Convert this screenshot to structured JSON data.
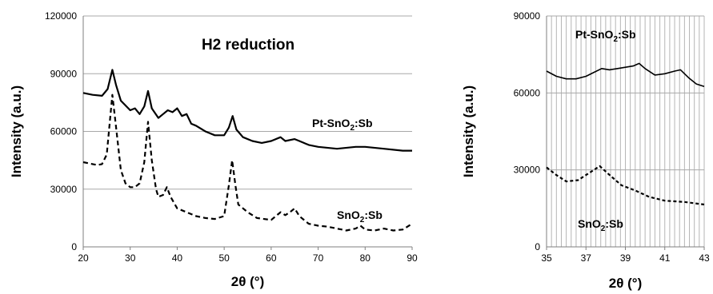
{
  "chart_data": [
    {
      "type": "line",
      "title": "H2 reduction",
      "xlabel": "2θ (°)",
      "ylabel": "Intensity (a.u.)",
      "xlim": [
        20,
        90
      ],
      "ylim": [
        0,
        120000
      ],
      "xticks": [
        "20",
        "30",
        "40",
        "50",
        "60",
        "70",
        "80",
        "90"
      ],
      "yticks": [
        "0",
        "30000",
        "60000",
        "90000",
        "120000"
      ],
      "grid": "horizontal",
      "annotations": [
        {
          "text": "Pt-SnO",
          "sub": "2",
          "rest": ":Sb"
        },
        {
          "text": "SnO",
          "sub": "2",
          "rest": ":Sb"
        }
      ],
      "series": [
        {
          "style": "solid",
          "points": [
            [
              20,
              80000
            ],
            [
              22,
              79000
            ],
            [
              24,
              78500
            ],
            [
              25.2,
              82000
            ],
            [
              26.2,
              92000
            ],
            [
              27,
              84000
            ],
            [
              28,
              76000
            ],
            [
              30,
              71000
            ],
            [
              31,
              72000
            ],
            [
              32,
              69000
            ],
            [
              33,
              73000
            ],
            [
              33.8,
              81000
            ],
            [
              34.6,
              72000
            ],
            [
              36,
              67000
            ],
            [
              37,
              69000
            ],
            [
              38,
              71000
            ],
            [
              39,
              70000
            ],
            [
              40,
              72000
            ],
            [
              41,
              68000
            ],
            [
              42,
              69000
            ],
            [
              43,
              64000
            ],
            [
              44,
              63000
            ],
            [
              46,
              60000
            ],
            [
              48,
              58000
            ],
            [
              50,
              58000
            ],
            [
              51,
              62000
            ],
            [
              51.8,
              68000
            ],
            [
              52.6,
              61000
            ],
            [
              54,
              57000
            ],
            [
              56,
              55000
            ],
            [
              58,
              54000
            ],
            [
              60,
              55000
            ],
            [
              62,
              57000
            ],
            [
              63,
              55000
            ],
            [
              65,
              56000
            ],
            [
              66,
              55000
            ],
            [
              68,
              53000
            ],
            [
              70,
              52000
            ],
            [
              74,
              51000
            ],
            [
              78,
              52000
            ],
            [
              80,
              52000
            ],
            [
              84,
              51000
            ],
            [
              88,
              50000
            ],
            [
              90,
              50000
            ]
          ]
        },
        {
          "style": "dashed",
          "points": [
            [
              20,
              44000
            ],
            [
              22,
              43000
            ],
            [
              23,
              42500
            ],
            [
              24,
              43000
            ],
            [
              25,
              48000
            ],
            [
              26.2,
              79000
            ],
            [
              27,
              62000
            ],
            [
              28,
              40000
            ],
            [
              29,
              33000
            ],
            [
              30,
              31000
            ],
            [
              31,
              31000
            ],
            [
              32,
              33000
            ],
            [
              33,
              44000
            ],
            [
              33.8,
              65000
            ],
            [
              34.6,
              45000
            ],
            [
              35.5,
              30000
            ],
            [
              36,
              26000
            ],
            [
              37,
              27000
            ],
            [
              37.8,
              31000
            ],
            [
              38.6,
              26000
            ],
            [
              40,
              20000
            ],
            [
              42,
              18000
            ],
            [
              44,
              16000
            ],
            [
              46,
              15000
            ],
            [
              48,
              14500
            ],
            [
              50,
              16000
            ],
            [
              51,
              32000
            ],
            [
              51.7,
              45000
            ],
            [
              52.4,
              32000
            ],
            [
              53,
              22000
            ],
            [
              55,
              18000
            ],
            [
              57,
              15000
            ],
            [
              60,
              14000
            ],
            [
              61,
              16000
            ],
            [
              62,
              18000
            ],
            [
              63,
              16500
            ],
            [
              64,
              18000
            ],
            [
              65,
              20000
            ],
            [
              66,
              16000
            ],
            [
              68,
              12000
            ],
            [
              70,
              11000
            ],
            [
              72,
              10500
            ],
            [
              74,
              9500
            ],
            [
              76,
              8500
            ],
            [
              78,
              9500
            ],
            [
              79,
              11000
            ],
            [
              80,
              9000
            ],
            [
              82,
              8500
            ],
            [
              84,
              9500
            ],
            [
              86,
              8500
            ],
            [
              88,
              9000
            ],
            [
              90,
              12000
            ]
          ]
        }
      ]
    },
    {
      "type": "line",
      "xlabel": "2θ (°)",
      "ylabel": "Intensity (a.u.)",
      "xlim": [
        35,
        43
      ],
      "ylim": [
        0,
        90000
      ],
      "xticks": [
        "35",
        "37",
        "39",
        "41",
        "43"
      ],
      "yticks": [
        "0",
        "30000",
        "60000",
        "90000"
      ],
      "grid": "both",
      "annotations": [
        {
          "text": "Pt-SnO",
          "sub": "2",
          "rest": ":Sb"
        },
        {
          "text": "SnO",
          "sub": "2",
          "rest": ":Sb"
        }
      ],
      "series": [
        {
          "style": "solid",
          "points": [
            [
              35,
              68500
            ],
            [
              35.5,
              66500
            ],
            [
              36,
              65500
            ],
            [
              36.5,
              65500
            ],
            [
              37,
              66500
            ],
            [
              37.4,
              68000
            ],
            [
              37.8,
              69500
            ],
            [
              38.2,
              69000
            ],
            [
              38.6,
              69500
            ],
            [
              39,
              70000
            ],
            [
              39.4,
              70500
            ],
            [
              39.7,
              71500
            ],
            [
              40,
              69500
            ],
            [
              40.5,
              67000
            ],
            [
              41,
              67500
            ],
            [
              41.5,
              68500
            ],
            [
              41.8,
              69000
            ],
            [
              42.2,
              66000
            ],
            [
              42.6,
              63500
            ],
            [
              43,
              62500
            ]
          ]
        },
        {
          "style": "dashed",
          "points": [
            [
              35,
              31000
            ],
            [
              35.5,
              28000
            ],
            [
              36,
              25500
            ],
            [
              36.6,
              26000
            ],
            [
              37.2,
              29000
            ],
            [
              37.7,
              31500
            ],
            [
              38.2,
              28000
            ],
            [
              38.8,
              24000
            ],
            [
              39.5,
              22000
            ],
            [
              40.2,
              19500
            ],
            [
              41,
              18000
            ],
            [
              42,
              17500
            ],
            [
              42.5,
              17000
            ],
            [
              43,
              16500
            ]
          ]
        }
      ]
    }
  ]
}
